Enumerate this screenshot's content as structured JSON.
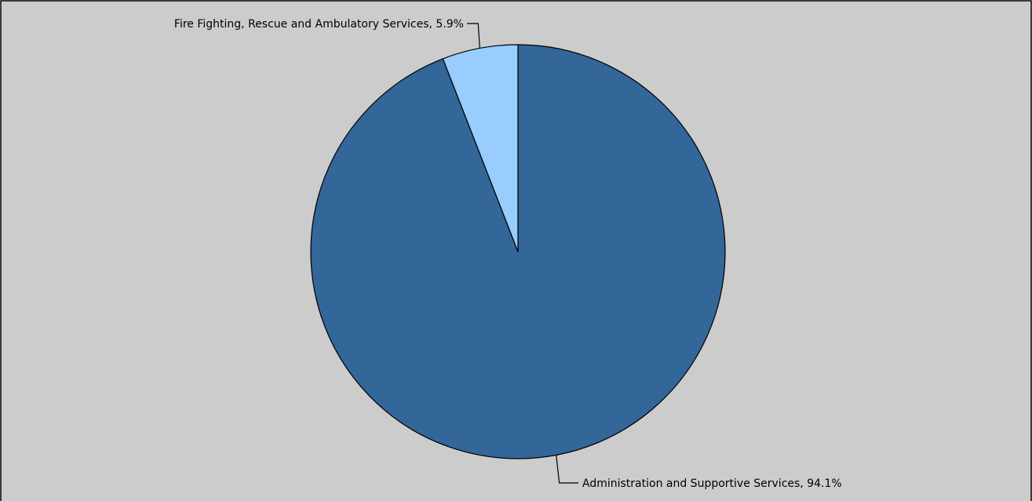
{
  "chart_data": {
    "type": "pie",
    "title": "",
    "start_angle": "top",
    "direction": "clockwise",
    "slices": [
      {
        "label": "Administration and Supportive Services",
        "value": 94.1,
        "display": "Administration and Supportive Services, 94.1%",
        "color": "#336699"
      },
      {
        "label": "Fire Fighting, Rescue and Ambulatory Services",
        "value": 5.9,
        "display": "Fire Fighting, Rescue and Ambulatory Services, 5.9%",
        "color": "#99ccff"
      }
    ]
  },
  "colors": {
    "background": "#cccccc",
    "border": "#000000"
  }
}
